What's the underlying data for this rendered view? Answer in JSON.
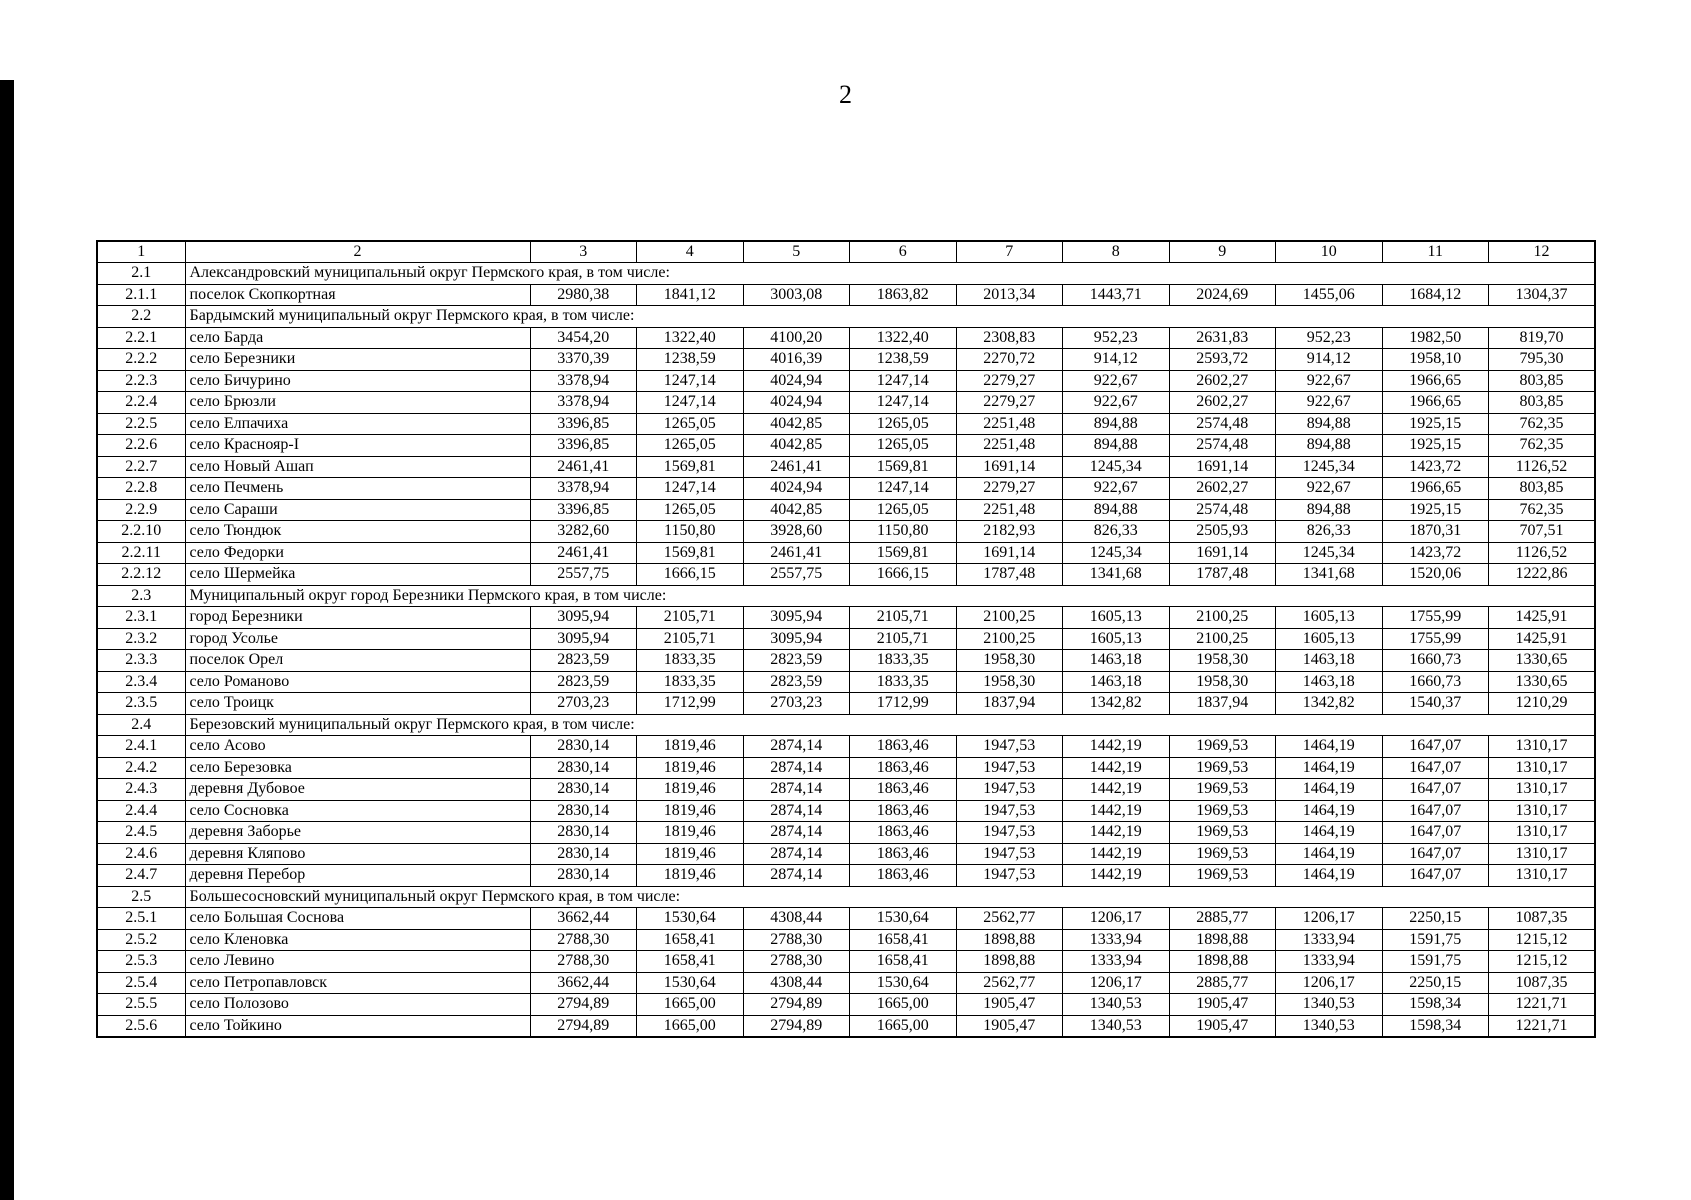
{
  "page": {
    "number": "2"
  },
  "table": {
    "header": [
      "1",
      "2",
      "3",
      "4",
      "5",
      "6",
      "7",
      "8",
      "9",
      "10",
      "11",
      "12"
    ],
    "rows": [
      {
        "type": "section",
        "num": "2.1",
        "label": "Александровский муниципальный округ Пермского края, в том числе:"
      },
      {
        "type": "data",
        "num": "2.1.1",
        "name": "поселок Скопкортная",
        "values": [
          "2980,38",
          "1841,12",
          "3003,08",
          "1863,82",
          "2013,34",
          "1443,71",
          "2024,69",
          "1455,06",
          "1684,12",
          "1304,37"
        ]
      },
      {
        "type": "section",
        "num": "2.2",
        "label": "Бардымский муниципальный округ Пермского края, в том числе:"
      },
      {
        "type": "data",
        "num": "2.2.1",
        "name": "село Барда",
        "values": [
          "3454,20",
          "1322,40",
          "4100,20",
          "1322,40",
          "2308,83",
          "952,23",
          "2631,83",
          "952,23",
          "1982,50",
          "819,70"
        ]
      },
      {
        "type": "data",
        "num": "2.2.2",
        "name": "село Березники",
        "values": [
          "3370,39",
          "1238,59",
          "4016,39",
          "1238,59",
          "2270,72",
          "914,12",
          "2593,72",
          "914,12",
          "1958,10",
          "795,30"
        ]
      },
      {
        "type": "data",
        "num": "2.2.3",
        "name": "село Бичурино",
        "values": [
          "3378,94",
          "1247,14",
          "4024,94",
          "1247,14",
          "2279,27",
          "922,67",
          "2602,27",
          "922,67",
          "1966,65",
          "803,85"
        ]
      },
      {
        "type": "data",
        "num": "2.2.4",
        "name": "село Брюзли",
        "values": [
          "3378,94",
          "1247,14",
          "4024,94",
          "1247,14",
          "2279,27",
          "922,67",
          "2602,27",
          "922,67",
          "1966,65",
          "803,85"
        ]
      },
      {
        "type": "data",
        "num": "2.2.5",
        "name": "село Елпачиха",
        "values": [
          "3396,85",
          "1265,05",
          "4042,85",
          "1265,05",
          "2251,48",
          "894,88",
          "2574,48",
          "894,88",
          "1925,15",
          "762,35"
        ]
      },
      {
        "type": "data",
        "num": "2.2.6",
        "name": "село Краснояр-I",
        "values": [
          "3396,85",
          "1265,05",
          "4042,85",
          "1265,05",
          "2251,48",
          "894,88",
          "2574,48",
          "894,88",
          "1925,15",
          "762,35"
        ]
      },
      {
        "type": "data",
        "num": "2.2.7",
        "name": "село Новый Ашап",
        "values": [
          "2461,41",
          "1569,81",
          "2461,41",
          "1569,81",
          "1691,14",
          "1245,34",
          "1691,14",
          "1245,34",
          "1423,72",
          "1126,52"
        ]
      },
      {
        "type": "data",
        "num": "2.2.8",
        "name": "село Печмень",
        "values": [
          "3378,94",
          "1247,14",
          "4024,94",
          "1247,14",
          "2279,27",
          "922,67",
          "2602,27",
          "922,67",
          "1966,65",
          "803,85"
        ]
      },
      {
        "type": "data",
        "num": "2.2.9",
        "name": "село Сараши",
        "values": [
          "3396,85",
          "1265,05",
          "4042,85",
          "1265,05",
          "2251,48",
          "894,88",
          "2574,48",
          "894,88",
          "1925,15",
          "762,35"
        ]
      },
      {
        "type": "data",
        "num": "2.2.10",
        "name": "село Тюндюк",
        "values": [
          "3282,60",
          "1150,80",
          "3928,60",
          "1150,80",
          "2182,93",
          "826,33",
          "2505,93",
          "826,33",
          "1870,31",
          "707,51"
        ]
      },
      {
        "type": "data",
        "num": "2.2.11",
        "name": "село Федорки",
        "values": [
          "2461,41",
          "1569,81",
          "2461,41",
          "1569,81",
          "1691,14",
          "1245,34",
          "1691,14",
          "1245,34",
          "1423,72",
          "1126,52"
        ]
      },
      {
        "type": "data",
        "num": "2.2.12",
        "name": "село Шермейка",
        "values": [
          "2557,75",
          "1666,15",
          "2557,75",
          "1666,15",
          "1787,48",
          "1341,68",
          "1787,48",
          "1341,68",
          "1520,06",
          "1222,86"
        ]
      },
      {
        "type": "section",
        "num": "2.3",
        "label": "Муниципальный округ город Березники Пермского края, в том числе:"
      },
      {
        "type": "data",
        "num": "2.3.1",
        "name": "город Березники",
        "values": [
          "3095,94",
          "2105,71",
          "3095,94",
          "2105,71",
          "2100,25",
          "1605,13",
          "2100,25",
          "1605,13",
          "1755,99",
          "1425,91"
        ]
      },
      {
        "type": "data",
        "num": "2.3.2",
        "name": "город Усолье",
        "values": [
          "3095,94",
          "2105,71",
          "3095,94",
          "2105,71",
          "2100,25",
          "1605,13",
          "2100,25",
          "1605,13",
          "1755,99",
          "1425,91"
        ]
      },
      {
        "type": "data",
        "num": "2.3.3",
        "name": "поселок Орел",
        "values": [
          "2823,59",
          "1833,35",
          "2823,59",
          "1833,35",
          "1958,30",
          "1463,18",
          "1958,30",
          "1463,18",
          "1660,73",
          "1330,65"
        ]
      },
      {
        "type": "data",
        "num": "2.3.4",
        "name": "село Романово",
        "values": [
          "2823,59",
          "1833,35",
          "2823,59",
          "1833,35",
          "1958,30",
          "1463,18",
          "1958,30",
          "1463,18",
          "1660,73",
          "1330,65"
        ]
      },
      {
        "type": "data",
        "num": "2.3.5",
        "name": "село Троицк",
        "values": [
          "2703,23",
          "1712,99",
          "2703,23",
          "1712,99",
          "1837,94",
          "1342,82",
          "1837,94",
          "1342,82",
          "1540,37",
          "1210,29"
        ]
      },
      {
        "type": "section",
        "num": "2.4",
        "label": "Березовский муниципальный округ Пермского края, в том числе:"
      },
      {
        "type": "data",
        "num": "2.4.1",
        "name": "село Асово",
        "values": [
          "2830,14",
          "1819,46",
          "2874,14",
          "1863,46",
          "1947,53",
          "1442,19",
          "1969,53",
          "1464,19",
          "1647,07",
          "1310,17"
        ]
      },
      {
        "type": "data",
        "num": "2.4.2",
        "name": "село Березовка",
        "values": [
          "2830,14",
          "1819,46",
          "2874,14",
          "1863,46",
          "1947,53",
          "1442,19",
          "1969,53",
          "1464,19",
          "1647,07",
          "1310,17"
        ]
      },
      {
        "type": "data",
        "num": "2.4.3",
        "name": "деревня Дубовое",
        "values": [
          "2830,14",
          "1819,46",
          "2874,14",
          "1863,46",
          "1947,53",
          "1442,19",
          "1969,53",
          "1464,19",
          "1647,07",
          "1310,17"
        ]
      },
      {
        "type": "data",
        "num": "2.4.4",
        "name": "село Сосновка",
        "values": [
          "2830,14",
          "1819,46",
          "2874,14",
          "1863,46",
          "1947,53",
          "1442,19",
          "1969,53",
          "1464,19",
          "1647,07",
          "1310,17"
        ]
      },
      {
        "type": "data",
        "num": "2.4.5",
        "name": "деревня Заборье",
        "values": [
          "2830,14",
          "1819,46",
          "2874,14",
          "1863,46",
          "1947,53",
          "1442,19",
          "1969,53",
          "1464,19",
          "1647,07",
          "1310,17"
        ]
      },
      {
        "type": "data",
        "num": "2.4.6",
        "name": "деревня Кляпово",
        "values": [
          "2830,14",
          "1819,46",
          "2874,14",
          "1863,46",
          "1947,53",
          "1442,19",
          "1969,53",
          "1464,19",
          "1647,07",
          "1310,17"
        ]
      },
      {
        "type": "data",
        "num": "2.4.7",
        "name": "деревня Перебор",
        "values": [
          "2830,14",
          "1819,46",
          "2874,14",
          "1863,46",
          "1947,53",
          "1442,19",
          "1969,53",
          "1464,19",
          "1647,07",
          "1310,17"
        ]
      },
      {
        "type": "section",
        "num": "2.5",
        "label": "Большесосновский муниципальный округ Пермского края, в том числе:"
      },
      {
        "type": "data",
        "num": "2.5.1",
        "name": "село Большая Соснова",
        "values": [
          "3662,44",
          "1530,64",
          "4308,44",
          "1530,64",
          "2562,77",
          "1206,17",
          "2885,77",
          "1206,17",
          "2250,15",
          "1087,35"
        ]
      },
      {
        "type": "data",
        "num": "2.5.2",
        "name": "село Кленовка",
        "values": [
          "2788,30",
          "1658,41",
          "2788,30",
          "1658,41",
          "1898,88",
          "1333,94",
          "1898,88",
          "1333,94",
          "1591,75",
          "1215,12"
        ]
      },
      {
        "type": "data",
        "num": "2.5.3",
        "name": "село Левино",
        "values": [
          "2788,30",
          "1658,41",
          "2788,30",
          "1658,41",
          "1898,88",
          "1333,94",
          "1898,88",
          "1333,94",
          "1591,75",
          "1215,12"
        ]
      },
      {
        "type": "data",
        "num": "2.5.4",
        "name": "село Петропавловск",
        "values": [
          "3662,44",
          "1530,64",
          "4308,44",
          "1530,64",
          "2562,77",
          "1206,17",
          "2885,77",
          "1206,17",
          "2250,15",
          "1087,35"
        ]
      },
      {
        "type": "data",
        "num": "2.5.5",
        "name": "село Полозово",
        "values": [
          "2794,89",
          "1665,00",
          "2794,89",
          "1665,00",
          "1905,47",
          "1340,53",
          "1905,47",
          "1340,53",
          "1598,34",
          "1221,71"
        ]
      },
      {
        "type": "data",
        "num": "2.5.6",
        "name": "село Тойкино",
        "values": [
          "2794,89",
          "1665,00",
          "2794,89",
          "1665,00",
          "1905,47",
          "1340,53",
          "1905,47",
          "1340,53",
          "1598,34",
          "1221,71"
        ]
      }
    ]
  }
}
